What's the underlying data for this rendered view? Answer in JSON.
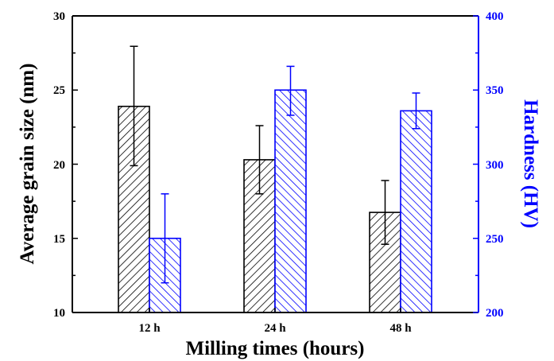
{
  "chart_data": {
    "type": "bar",
    "categories": [
      "12 h",
      "24 h",
      "48 h"
    ],
    "xlabel": "Milling times (hours)",
    "ylabel": "Average grain size (nm)",
    "y2label": "Hardness (HV)",
    "ylim": [
      10,
      30
    ],
    "y2lim": [
      200,
      400
    ],
    "yticks": [
      "10",
      "15",
      "20",
      "25",
      "30"
    ],
    "y2ticks": [
      "200",
      "250",
      "300",
      "350",
      "400"
    ],
    "series": [
      {
        "axis": "left",
        "color": "#000000",
        "pattern": "diagonal-hatch-forward",
        "values": [
          23.9,
          20.3,
          16.75
        ],
        "error_low": [
          19.9,
          18.0,
          14.6
        ],
        "error_high": [
          27.95,
          22.6,
          18.9
        ]
      },
      {
        "axis": "right",
        "color": "#0000ff",
        "pattern": "diagonal-hatch-backward",
        "values": [
          250,
          350,
          336
        ],
        "error_low": [
          220,
          333,
          324
        ],
        "error_high": [
          280,
          366,
          348
        ]
      }
    ]
  }
}
